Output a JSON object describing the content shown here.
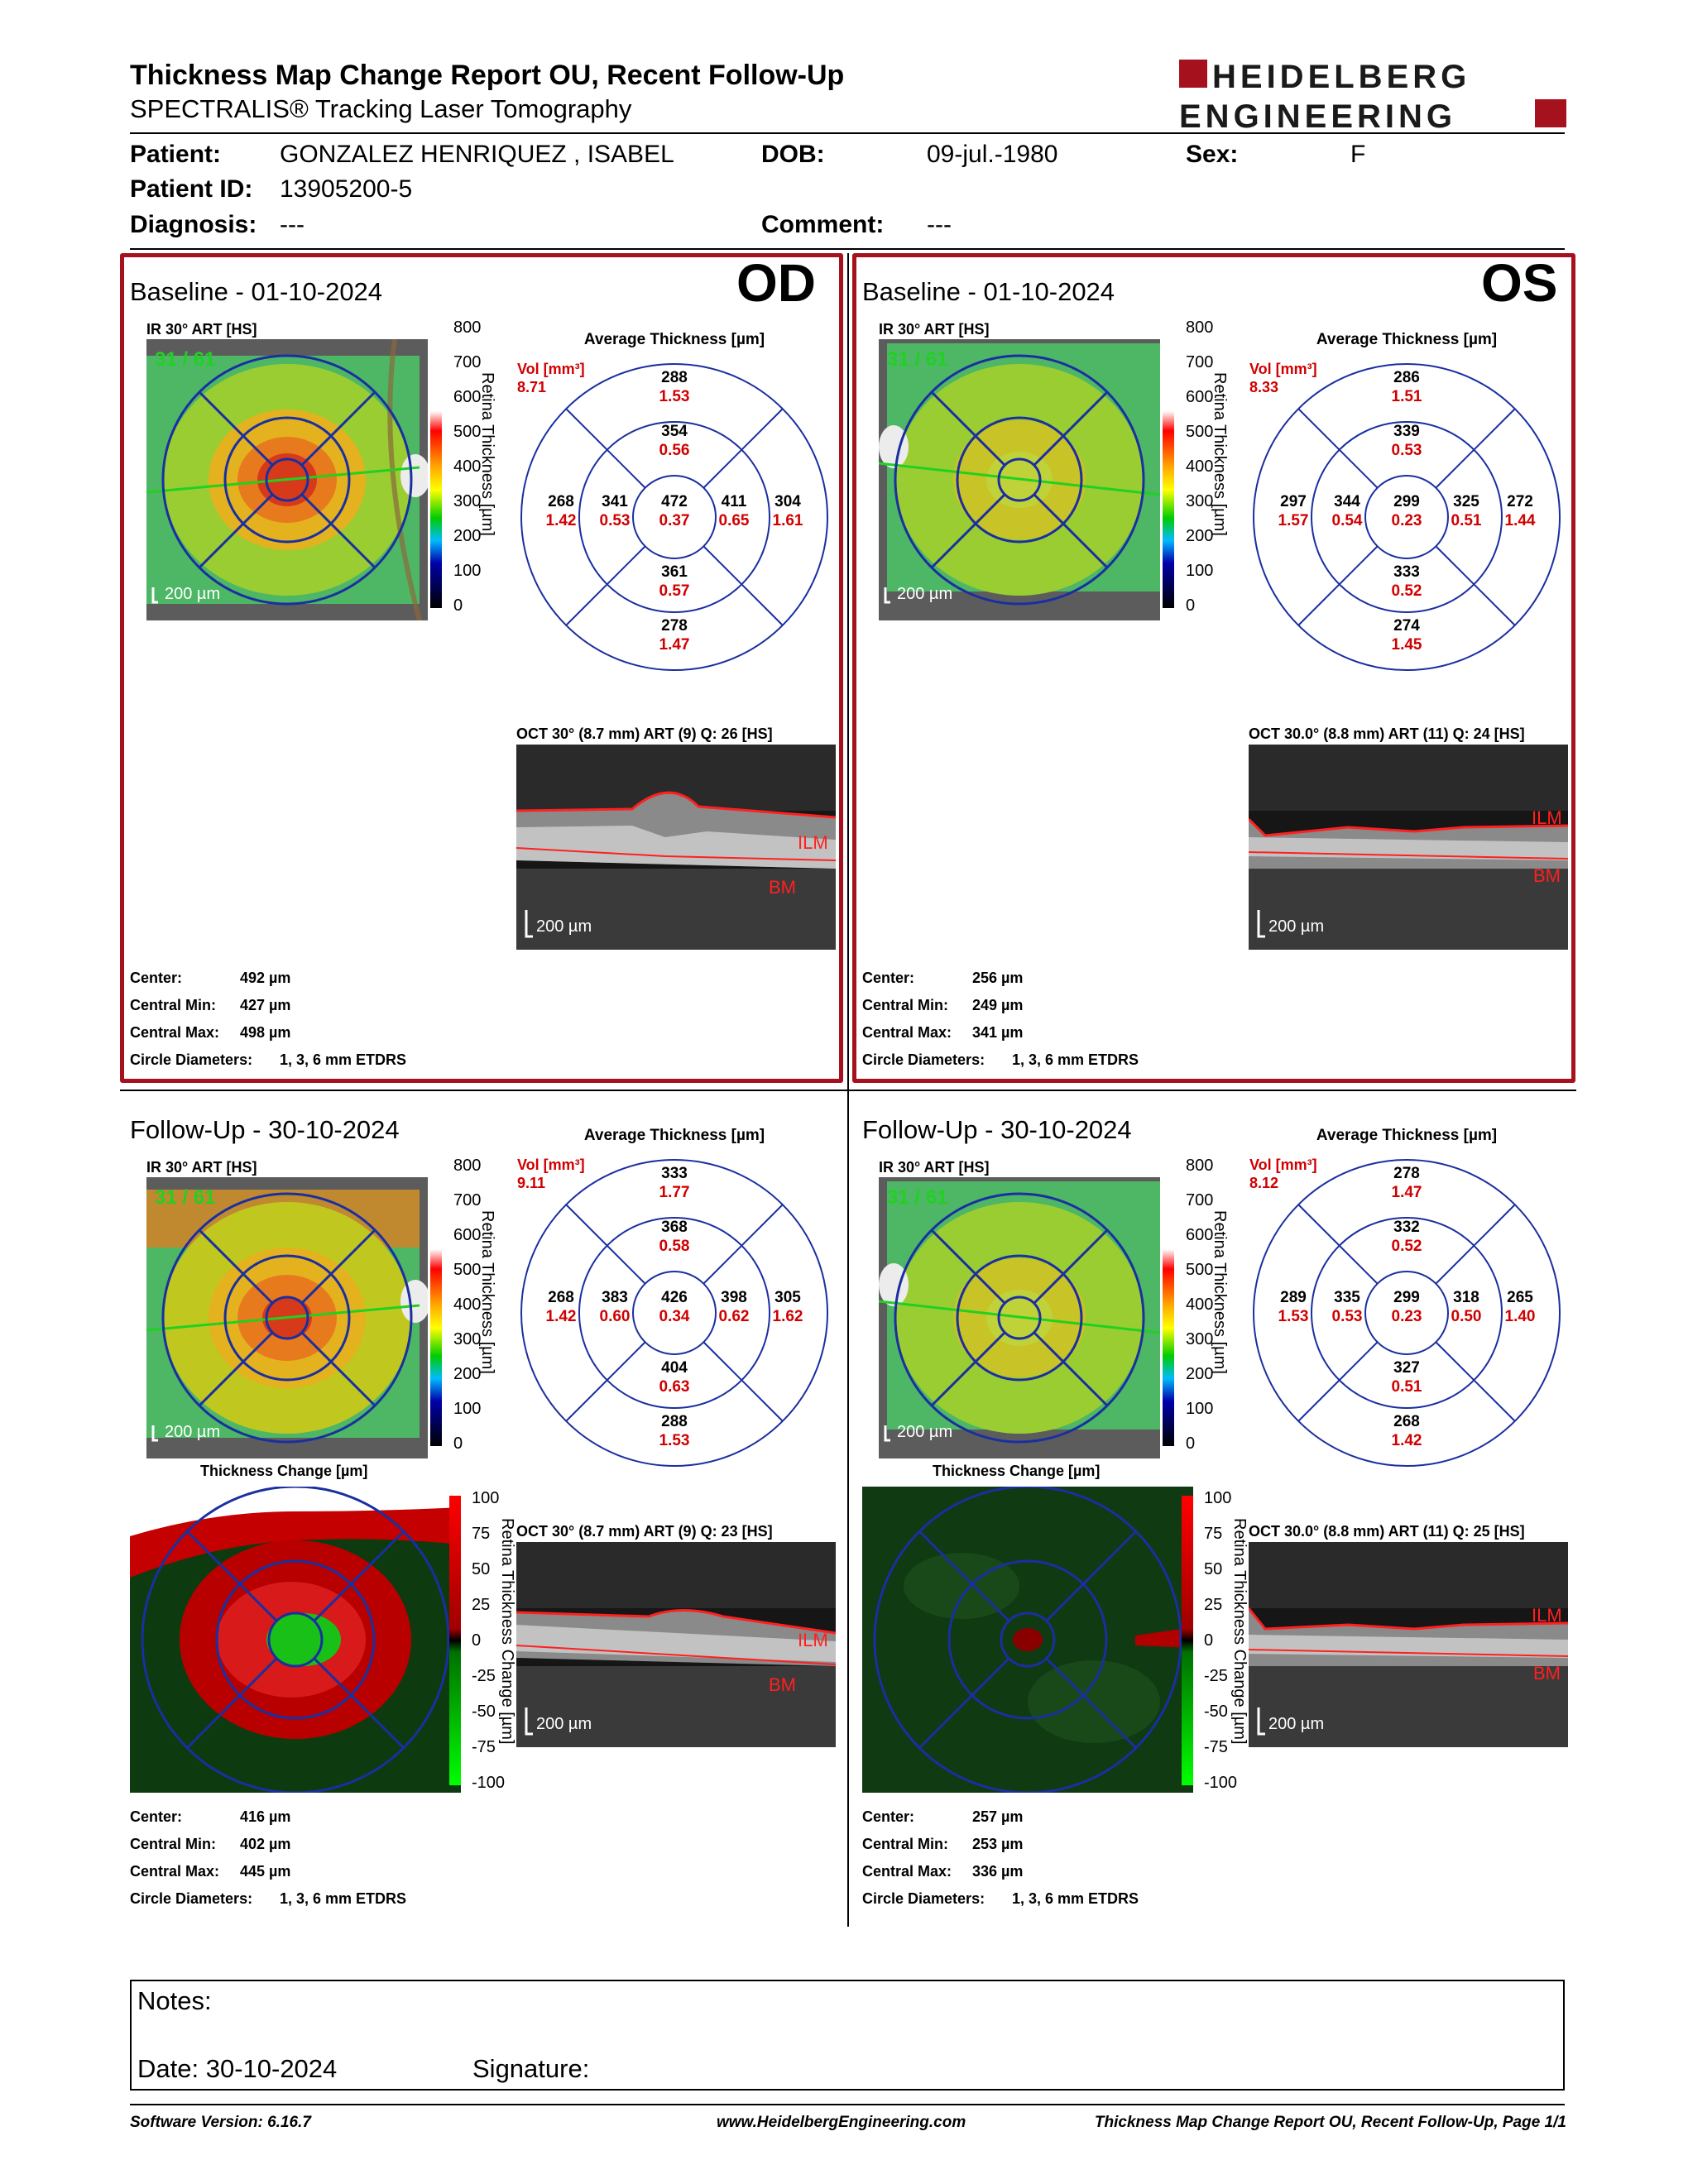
{
  "header": {
    "title": "Thickness Map Change Report OU, Recent Follow-Up",
    "subtitle": "SPECTRALIS® Tracking Laser Tomography",
    "logo_line1": "HEIDELBERG",
    "logo_line2": "ENGINEERING"
  },
  "patient": {
    "patient_label": "Patient:",
    "patient_value": "GONZALEZ HENRIQUEZ , ISABEL",
    "dob_label": "DOB:",
    "dob_value": "09-jul.-1980",
    "sex_label": "Sex:",
    "sex_value": "F",
    "id_label": "Patient ID:",
    "id_value": "13905200-5",
    "diag_label": "Diagnosis:",
    "diag_value": "---",
    "comment_label": "Comment:",
    "comment_value": "---"
  },
  "labels": {
    "ir": "IR 30° ART [HS]",
    "avg": "Average Thickness [µm]",
    "vol": "Vol [mm³]",
    "scale_axis": "Retina Thickness [µm]",
    "change_axis": "Retina Thickness Change [µm]",
    "change_title": "Thickness Change [µm]",
    "scalebar": "200 µm",
    "ilm": "ILM",
    "bm": "BM",
    "center": "Center:",
    "cmin": "Central Min:",
    "cmax": "Central Max:",
    "circ": "Circle Diameters:",
    "circ_val": "1, 3, 6 mm ETDRS",
    "frame_od": "31 / 61"
  },
  "scale_ticks": [
    "800",
    "700",
    "600",
    "500",
    "400",
    "300",
    "200",
    "100",
    "0"
  ],
  "change_ticks": [
    "100",
    "75",
    "50",
    "25",
    "0",
    "-25",
    "-50",
    "-75",
    "-100"
  ],
  "panels": {
    "od_base": {
      "title": "Baseline - 01-10-2024",
      "eye": "OD",
      "vol": "8.71",
      "sup_out": [
        "288",
        "1.53"
      ],
      "sup_in": [
        "354",
        "0.56"
      ],
      "tmp_out": [
        "268",
        "1.42"
      ],
      "tmp_in": [
        "341",
        "0.53"
      ],
      "ctr": [
        "472",
        "0.37"
      ],
      "nas_in": [
        "411",
        "0.65"
      ],
      "nas_out": [
        "304",
        "1.61"
      ],
      "inf_in": [
        "361",
        "0.57"
      ],
      "inf_out": [
        "278",
        "1.47"
      ],
      "oct": "OCT 30° (8.7 mm) ART (9) Q: 26 [HS]",
      "center": "492 µm",
      "cmin": "427 µm",
      "cmax": "498 µm"
    },
    "os_base": {
      "title": "Baseline - 01-10-2024",
      "eye": "OS",
      "vol": "8.33",
      "sup_out": [
        "286",
        "1.51"
      ],
      "sup_in": [
        "339",
        "0.53"
      ],
      "tmp_out": [
        "297",
        "1.57"
      ],
      "tmp_in": [
        "344",
        "0.54"
      ],
      "ctr": [
        "299",
        "0.23"
      ],
      "nas_in": [
        "325",
        "0.51"
      ],
      "nas_out": [
        "272",
        "1.44"
      ],
      "inf_in": [
        "333",
        "0.52"
      ],
      "inf_out": [
        "274",
        "1.45"
      ],
      "oct": "OCT 30.0° (8.8 mm) ART (11) Q: 24 [HS]",
      "center": "256 µm",
      "cmin": "249 µm",
      "cmax": "341 µm"
    },
    "od_fu": {
      "title": "Follow-Up - 30-10-2024",
      "vol": "9.11",
      "sup_out": [
        "333",
        "1.77"
      ],
      "sup_in": [
        "368",
        "0.58"
      ],
      "tmp_out": [
        "268",
        "1.42"
      ],
      "tmp_in": [
        "383",
        "0.60"
      ],
      "ctr": [
        "426",
        "0.34"
      ],
      "nas_in": [
        "398",
        "0.62"
      ],
      "nas_out": [
        "305",
        "1.62"
      ],
      "inf_in": [
        "404",
        "0.63"
      ],
      "inf_out": [
        "288",
        "1.53"
      ],
      "oct": "OCT 30° (8.7 mm) ART (9) Q: 23 [HS]",
      "center": "416 µm",
      "cmin": "402 µm",
      "cmax": "445 µm"
    },
    "os_fu": {
      "title": "Follow-Up - 30-10-2024",
      "vol": "8.12",
      "sup_out": [
        "278",
        "1.47"
      ],
      "sup_in": [
        "332",
        "0.52"
      ],
      "tmp_out": [
        "289",
        "1.53"
      ],
      "tmp_in": [
        "335",
        "0.53"
      ],
      "ctr": [
        "299",
        "0.23"
      ],
      "nas_in": [
        "318",
        "0.50"
      ],
      "nas_out": [
        "265",
        "1.40"
      ],
      "inf_in": [
        "327",
        "0.51"
      ],
      "inf_out": [
        "268",
        "1.42"
      ],
      "oct": "OCT 30.0° (8.8 mm) ART (11) Q: 25 [HS]",
      "center": "257 µm",
      "cmin": "253 µm",
      "cmax": "336 µm"
    }
  },
  "notes": {
    "notes_label": "Notes:",
    "date_label": "Date: 30-10-2024",
    "signature_label": "Signature:"
  },
  "footer": {
    "software": "Software Version: 6.16.7",
    "website": "www.HeidelbergEngineering.com",
    "page": "Thickness Map Change Report OU, Recent Follow-Up, Page 1/1"
  },
  "colors": {
    "frame": "#a5121e",
    "value_red": "#d00000",
    "grid_blue": "#1a2fa0"
  }
}
